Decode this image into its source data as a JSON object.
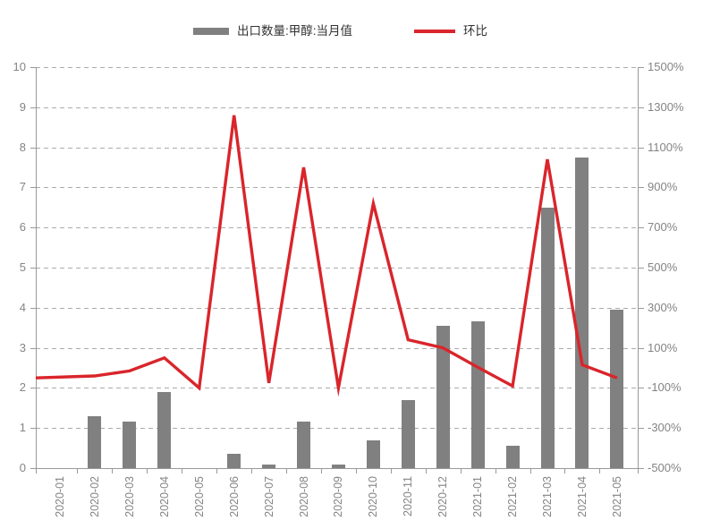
{
  "legend": {
    "bar_label": "出口数量:甲醇:当月值",
    "line_label": "环比"
  },
  "colors": {
    "bar": "#808080",
    "line": "#d9252b",
    "grid": "#ababab",
    "axis": "#999999",
    "tick_text": "#848484",
    "legend_text": "#333333",
    "background": "#ffffff"
  },
  "chart_data": {
    "type": "combo",
    "title": "",
    "categories": [
      "2020-01",
      "2020-02",
      "2020-03",
      "2020-04",
      "2020-05",
      "2020-06",
      "2020-07",
      "2020-08",
      "2020-09",
      "2020-10",
      "2020-11",
      "2020-12",
      "2021-01",
      "2021-02",
      "2021-03",
      "2021-04",
      "2021-05"
    ],
    "series": [
      {
        "name": "出口数量:甲醇:当月值",
        "type": "bar",
        "axis": "left",
        "values": [
          0,
          1.3,
          1.15,
          1.9,
          0,
          0.35,
          0.1,
          1.15,
          0.08,
          0.7,
          1.7,
          3.55,
          3.65,
          0.55,
          6.5,
          7.75,
          3.95
        ]
      },
      {
        "name": "环比",
        "type": "line",
        "axis": "right",
        "unit": "%",
        "values": [
          -50,
          -40,
          -15,
          50,
          -100,
          1260,
          -75,
          1000,
          -100,
          820,
          140,
          100,
          3,
          -90,
          1040,
          15,
          -50
        ]
      }
    ],
    "left_axis": {
      "min": 0,
      "max": 10,
      "step": 1,
      "tick_labels": [
        "0",
        "1",
        "2",
        "3",
        "4",
        "5",
        "6",
        "7",
        "8",
        "9",
        "10"
      ]
    },
    "right_axis": {
      "min": -500,
      "max": 1500,
      "step": 200,
      "tick_labels": [
        "-500%",
        "-300%",
        "-100%",
        "100%",
        "300%",
        "500%",
        "700%",
        "900%",
        "1100%",
        "1300%",
        "1500%"
      ]
    },
    "grid": {
      "horizontal": "dashed",
      "vertical": "none"
    },
    "legend_position": "top"
  }
}
